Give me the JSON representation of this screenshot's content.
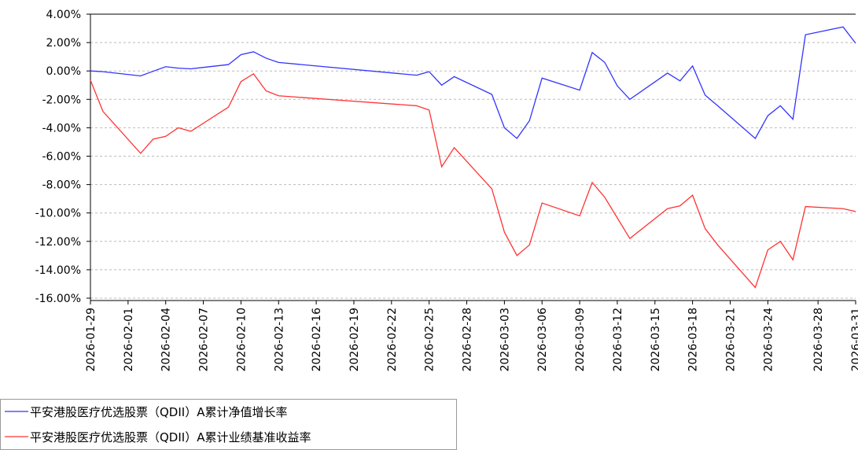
{
  "chart_data": {
    "type": "line",
    "x": [
      "2026-01-29",
      "2026-01-30",
      "2026-02-02",
      "2026-02-03",
      "2026-02-04",
      "2026-02-05",
      "2026-02-06",
      "2026-02-09",
      "2026-02-10",
      "2026-02-11",
      "2026-02-12",
      "2026-02-13",
      "2026-02-24",
      "2026-02-25",
      "2026-02-26",
      "2026-02-27",
      "2026-03-02",
      "2026-03-03",
      "2026-03-04",
      "2026-03-05",
      "2026-03-06",
      "2026-03-09",
      "2026-03-10",
      "2026-03-11",
      "2026-03-12",
      "2026-03-13",
      "2026-03-16",
      "2026-03-17",
      "2026-03-18",
      "2026-03-19",
      "2026-03-20",
      "2026-03-23",
      "2026-03-24",
      "2026-03-25",
      "2026-03-26",
      "2026-03-27",
      "2026-03-30",
      "2026-03-31"
    ],
    "series": [
      {
        "name": "平安港股医疗优选股票（QDII）A累计净值增长率",
        "color": "#3333ff",
        "values": [
          0.0,
          -0.05,
          -0.35,
          -0.02,
          0.3,
          0.2,
          0.15,
          0.45,
          1.15,
          1.35,
          0.9,
          0.6,
          -0.3,
          -0.05,
          -1.0,
          -0.4,
          -1.65,
          -4.0,
          -4.75,
          -3.5,
          -0.5,
          -1.35,
          1.3,
          0.6,
          -1.05,
          -2.0,
          -0.15,
          -0.7,
          0.35,
          -1.7,
          -2.45,
          -4.75,
          -3.15,
          -2.45,
          -3.4,
          2.55,
          3.1,
          1.95
        ]
      },
      {
        "name": "平安港股医疗优选股票（QDII）A累计业绩基准收益率",
        "color": "#ff3333",
        "values": [
          -0.65,
          -2.85,
          -5.8,
          -4.8,
          -4.6,
          -4.0,
          -4.25,
          -2.55,
          -0.75,
          -0.2,
          -1.4,
          -1.75,
          -2.45,
          -2.75,
          -6.75,
          -5.4,
          -8.3,
          -11.35,
          -13.0,
          -12.25,
          -9.3,
          -10.2,
          -7.85,
          -8.9,
          -10.35,
          -11.8,
          -9.7,
          -9.5,
          -8.75,
          -11.1,
          -12.25,
          -15.25,
          -12.6,
          -12.0,
          -13.3,
          -9.55,
          -9.7,
          -9.9
        ]
      }
    ],
    "xlim": [
      "2026-01-29",
      "2026-03-31"
    ],
    "xticks": [
      "2026-01-29",
      "2026-02-01",
      "2026-02-04",
      "2026-02-07",
      "2026-02-10",
      "2026-02-13",
      "2026-02-16",
      "2026-02-19",
      "2026-02-22",
      "2026-02-25",
      "2026-02-28",
      "2026-03-03",
      "2026-03-06",
      "2026-03-09",
      "2026-03-12",
      "2026-03-15",
      "2026-03-18",
      "2026-03-21",
      "2026-03-24",
      "2026-03-28",
      "2026-03-31"
    ],
    "ylim": [
      -16,
      4
    ],
    "yticks": [
      {
        "value": 4,
        "label": "4.00%"
      },
      {
        "value": 2,
        "label": "2.00%"
      },
      {
        "value": 0,
        "label": "0.00%"
      },
      {
        "value": -2,
        "label": "-2.00%"
      },
      {
        "value": -4,
        "label": "-4.00%"
      },
      {
        "value": -6,
        "label": "-6.00%"
      },
      {
        "value": -8,
        "label": "-8.00%"
      },
      {
        "value": -10,
        "label": "-10.00%"
      },
      {
        "value": -12,
        "label": "-12.00%"
      },
      {
        "value": -14,
        "label": "-14.00%"
      },
      {
        "value": -16,
        "label": "-16.00%"
      }
    ],
    "grid": true
  }
}
